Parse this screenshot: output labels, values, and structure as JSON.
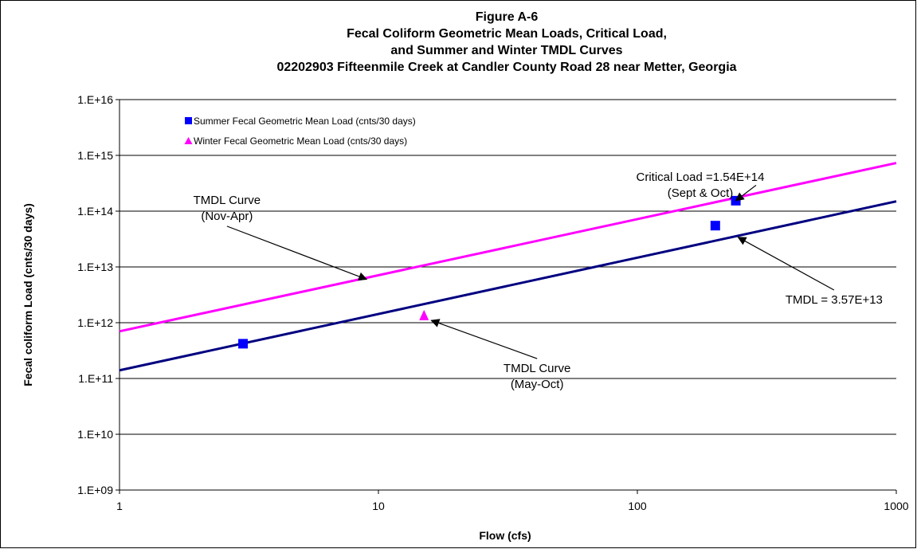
{
  "chart_data": {
    "type": "scatter",
    "title_lines": [
      "Figure A-6",
      "Fecal Coliform Geometric Mean Loads,  Critical Load,",
      "and Summer and Winter TMDL Curves",
      "02202903 Fifteenmile Creek at Candler County Road 28 near Metter, Georgia"
    ],
    "xlabel": "Flow   (cfs)",
    "ylabel": "Fecal coliform Load  (cnts/30 days)",
    "x_scale": "log",
    "y_scale": "log",
    "xlim": [
      1,
      1000
    ],
    "ylim": [
      1000000000.0,
      1e+16
    ],
    "x_ticks": [
      {
        "value": 1,
        "label": "1"
      },
      {
        "value": 10,
        "label": "10"
      },
      {
        "value": 100,
        "label": "100"
      },
      {
        "value": 1000,
        "label": "1000"
      }
    ],
    "y_ticks": [
      {
        "value": 1000000000.0,
        "label": "1.E+09"
      },
      {
        "value": 10000000000.0,
        "label": "1.E+10"
      },
      {
        "value": 100000000000.0,
        "label": "1.E+11"
      },
      {
        "value": 1000000000000.0,
        "label": "1.E+12"
      },
      {
        "value": 10000000000000.0,
        "label": "1.E+13"
      },
      {
        "value": 100000000000000.0,
        "label": "1.E+14"
      },
      {
        "value": 1000000000000000.0,
        "label": "1.E+15"
      },
      {
        "value": 1e+16,
        "label": "1.E+16"
      }
    ],
    "grid": "horizontal",
    "legend_position": "top-left",
    "series": [
      {
        "name": "Summer Fecal Geometric Mean Load (cnts/30 days)",
        "kind": "scatter",
        "marker": "square",
        "color": "#0000ff",
        "points": [
          {
            "x": 3,
            "y": 420000000000.0
          },
          {
            "x": 200,
            "y": 55000000000000.0
          },
          {
            "x": 240,
            "y": 154000000000000.0
          }
        ]
      },
      {
        "name": "Winter Fecal Geometric Mean Load (cnts/30 days)",
        "kind": "scatter",
        "marker": "triangle",
        "color": "#ff00ff",
        "points": [
          {
            "x": 15,
            "y": 1350000000000.0
          }
        ]
      },
      {
        "kind": "line",
        "color": "#ff00ff",
        "points": [
          {
            "x": 1,
            "y": 700000000000.0
          },
          {
            "x": 1000,
            "y": 730000000000000.0
          }
        ]
      },
      {
        "kind": "line",
        "color": "#000080",
        "points": [
          {
            "x": 1,
            "y": 140000000000.0
          },
          {
            "x": 1000,
            "y": 150000000000000.0
          }
        ]
      }
    ],
    "annotations": [
      {
        "lines": [
          "Critical Load =1.54E+14",
          "(Sept & Oct)"
        ],
        "anchor": {
          "x": 175,
          "y": 350000000000000.0
        },
        "target": {
          "x": 240,
          "y": 154000000000000.0
        }
      },
      {
        "lines": [
          "TMDL Curve",
          "(Nov-Apr)"
        ],
        "anchor": {
          "x": 2.6,
          "y": 135000000000000.0
        },
        "target": {
          "x": 9,
          "y": 6000000000000.0
        }
      },
      {
        "lines": [
          "TMDL Curve",
          "(May-Oct)"
        ],
        "anchor": {
          "x": 41,
          "y": 130000000000.0
        },
        "target": {
          "x": 16,
          "y": 1100000000000.0
        }
      },
      {
        "lines": [
          "TMDL = 3.57E+13"
        ],
        "anchor": {
          "x": 575,
          "y": 2200000000000.0
        },
        "target": {
          "x": 245,
          "y": 34000000000000.0
        }
      }
    ]
  }
}
